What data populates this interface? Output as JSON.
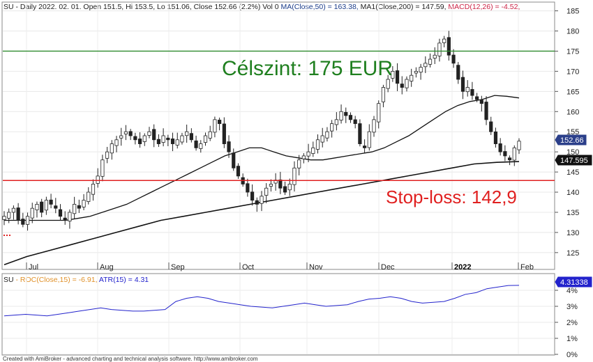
{
  "header": {
    "ticker": "SU",
    "info": " - Daily 2022. 02. 01. Open 151.5, Hi 153.5, Lo 151.06, Close 152.66 (2.2%) Vol 0 ",
    "ma50": "MA(Close,50) = 163.38,",
    "ma200": " MA1(Close,200) = 147.59,",
    "macd": " MACD(12,26) = -4.52,"
  },
  "indicator_header": {
    "ticker": "SU",
    "roc": " - ROC(Close,15) = -6.91,",
    "atr": " ATR(15) = 4.31"
  },
  "annotations": {
    "target": "Célszint: 175 EUR",
    "stop": "Stop-loss: 142,9"
  },
  "price_tags": {
    "last": "152.66",
    "ma200": "147.595",
    "atr": "4.31338"
  },
  "footer": "Created with AmiBroker - advanced charting and technical analysis software. http://www.amibroker.com",
  "colors": {
    "target_line": "#2e8b2e",
    "target_text": "#1f7f1f",
    "stop_line": "#e02020",
    "stop_text": "#e02020",
    "ma_line": "#111111",
    "atr_line": "#2222cc",
    "roc_text": "#e0912a",
    "macd_text": "#cc2244",
    "ma_text": "#1a3c8a"
  },
  "chart_data": [
    {
      "type": "candlestick",
      "title": "SU - Daily",
      "y_axis_ticks": [
        125,
        130,
        135,
        140,
        145,
        150,
        155,
        160,
        165,
        170,
        175,
        180,
        185
      ],
      "ylim": [
        121,
        187
      ],
      "x_axis_labels": [
        "Jul",
        "Aug",
        "Sep",
        "Oct",
        "Nov",
        "Dec",
        "2022",
        "Feb"
      ],
      "horizontal_lines": [
        {
          "label": "Célszint: 175 EUR",
          "value": 175
        },
        {
          "label": "Stop-loss: 142,9",
          "value": 142.9
        }
      ],
      "close_series_approx": [
        134,
        135,
        136,
        133,
        132,
        134,
        136,
        137,
        135,
        138,
        137,
        136,
        134,
        133,
        135,
        137,
        136,
        138,
        140,
        142,
        144,
        148,
        150,
        152,
        153,
        154,
        155,
        154,
        153,
        152,
        154,
        155,
        153,
        152,
        154,
        153,
        152,
        153,
        154,
        155,
        153,
        151,
        152,
        154,
        155,
        158,
        157,
        152,
        150,
        146,
        144,
        142,
        140,
        138,
        137,
        139,
        141,
        142,
        143,
        141,
        140,
        142,
        146,
        148,
        149,
        150,
        151,
        153,
        154,
        155,
        157,
        158,
        160,
        159,
        158,
        157,
        152,
        151,
        155,
        158,
        162,
        166,
        168,
        170,
        167,
        166,
        168,
        169,
        170,
        171,
        172,
        173,
        174,
        177,
        178,
        174,
        172,
        168,
        165,
        166,
        164,
        163,
        162,
        158,
        155,
        152,
        150,
        149,
        148,
        151,
        152.66
      ],
      "ma50_series_approx": [
        133,
        133,
        133,
        133,
        133,
        133,
        133.5,
        134,
        135,
        136,
        137,
        138.5,
        140,
        141.5,
        143,
        144.5,
        146,
        147.5,
        149,
        150,
        151,
        151,
        150,
        149,
        148.5,
        148,
        148,
        148.5,
        149,
        149.5,
        150,
        151,
        152.5,
        154,
        156,
        158,
        160,
        161.5,
        162.5,
        163,
        164,
        163.8,
        163.38
      ],
      "ma200_series_approx": [
        122,
        124,
        125.5,
        127,
        128.5,
        130,
        131.5,
        133,
        134,
        135,
        136,
        137,
        138,
        139,
        140,
        141,
        142,
        143,
        144,
        145,
        146,
        147,
        147.4,
        147.59
      ],
      "last_close": 152.66,
      "ma200_last": 147.595
    },
    {
      "type": "line",
      "title": "SU - ROC(Close,15) = -6.91, ATR(15) = 4.31",
      "y_axis_ticks": [
        "0%",
        "1%",
        "2%",
        "3%",
        "4%"
      ],
      "ylim": [
        0,
        5
      ],
      "series": [
        {
          "name": "ATR(15)",
          "values": [
            2.4,
            2.45,
            2.5,
            2.45,
            2.4,
            2.5,
            2.6,
            2.7,
            2.8,
            2.9,
            2.8,
            2.75,
            2.7,
            2.7,
            2.75,
            2.8,
            3.3,
            3.5,
            3.6,
            3.5,
            3.3,
            3.2,
            3.1,
            3.0,
            2.95,
            2.9,
            3.0,
            3.1,
            3.2,
            3.1,
            3.0,
            3.05,
            3.1,
            3.3,
            3.45,
            3.5,
            3.6,
            3.5,
            3.3,
            3.2,
            3.25,
            3.3,
            3.5,
            3.75,
            3.85,
            4.1,
            4.2,
            4.3,
            4.31
          ]
        }
      ],
      "last_value": 4.31338
    }
  ]
}
